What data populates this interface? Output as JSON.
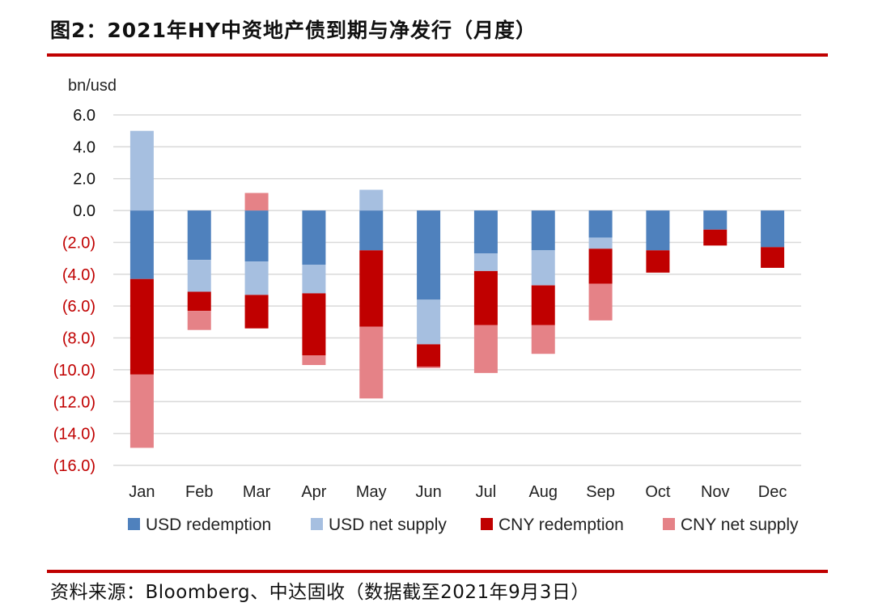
{
  "header": {
    "title": "图2：2021年HY中资地产债到期与净发行（月度）"
  },
  "footer": {
    "source": "资料来源：Bloomberg、中达固收（数据截至2021年9月3日）"
  },
  "chart_data": {
    "type": "bar",
    "stacked": true,
    "ylabel": "bn/usd",
    "ylim": [
      -16,
      6
    ],
    "yticks": [
      6,
      4,
      2,
      0,
      -2,
      -4,
      -6,
      -8,
      -10,
      -12,
      -14,
      -16
    ],
    "ytick_labels": [
      "6.0",
      "4.0",
      "2.0",
      "0.0",
      "(2.0)",
      "(4.0)",
      "(6.0)",
      "(8.0)",
      "(10.0)",
      "(12.0)",
      "(14.0)",
      "(16.0)"
    ],
    "negative_tick_color": "#c00000",
    "positive_tick_color": "#111111",
    "grid": true,
    "legend_position": "bottom",
    "categories": [
      "Jan",
      "Feb",
      "Mar",
      "Apr",
      "May",
      "Jun",
      "Jul",
      "Aug",
      "Sep",
      "Oct",
      "Nov",
      "Dec"
    ],
    "series": [
      {
        "name": "USD redemption",
        "color": "#4f81bd",
        "values": [
          -4.3,
          -3.1,
          -3.2,
          -3.4,
          -2.5,
          -5.6,
          -2.7,
          -2.5,
          -1.7,
          -2.5,
          -1.2,
          -2.3
        ]
      },
      {
        "name": "USD net supply",
        "color": "#a6bfe0",
        "values": [
          5.0,
          -2.0,
          -2.1,
          -1.8,
          1.3,
          -2.8,
          -1.1,
          -2.2,
          -0.7,
          0,
          0,
          0
        ]
      },
      {
        "name": "CNY redemption",
        "color": "#c00000",
        "values": [
          -6.0,
          -1.2,
          -2.1,
          -3.9,
          -4.8,
          -1.4,
          -3.4,
          -2.5,
          -2.2,
          -1.4,
          -1.0,
          -1.3
        ]
      },
      {
        "name": "CNY net supply",
        "color": "#e58287",
        "values": [
          -4.6,
          -1.2,
          1.1,
          -0.6,
          -4.5,
          -0.1,
          -3.0,
          -1.8,
          -2.3,
          0,
          0,
          0
        ]
      }
    ]
  }
}
